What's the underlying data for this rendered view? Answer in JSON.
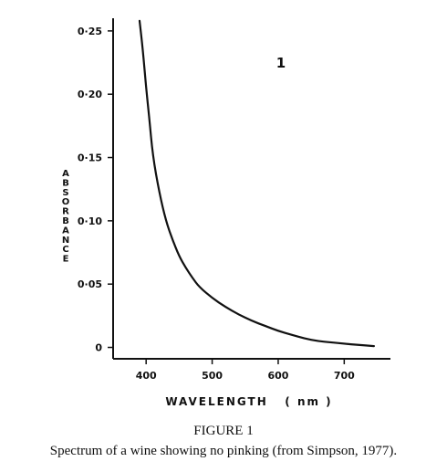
{
  "chart_data": {
    "type": "line",
    "title": "",
    "xlabel": "WAVELENGTH   ( nm )",
    "ylabel": "ABSORBANCE",
    "xlim": [
      350,
      770
    ],
    "ylim": [
      -0.009,
      0.26
    ],
    "x_ticks": [
      400,
      500,
      600,
      700
    ],
    "x_tick_labels": [
      "400",
      "500",
      "600",
      "700"
    ],
    "y_ticks": [
      0,
      0.05,
      0.1,
      0.15,
      0.2,
      0.25
    ],
    "y_tick_labels": [
      "0",
      "0·05",
      "0·10",
      "0·15",
      "0·20",
      "0·25"
    ],
    "grid": false,
    "series": [
      {
        "name": "1",
        "x": [
          390,
          395,
          400,
          405,
          410,
          420,
          430,
          440,
          450,
          460,
          470,
          480,
          500,
          520,
          540,
          560,
          580,
          600,
          620,
          640,
          660,
          680,
          700,
          720,
          745
        ],
        "y": [
          0.258,
          0.235,
          0.205,
          0.18,
          0.152,
          0.122,
          0.1,
          0.085,
          0.072,
          0.063,
          0.055,
          0.048,
          0.039,
          0.032,
          0.026,
          0.021,
          0.017,
          0.013,
          0.01,
          0.007,
          0.005,
          0.004,
          0.003,
          0.002,
          0.001
        ]
      }
    ]
  },
  "figure": {
    "title": "FIGURE 1",
    "caption": "Spectrum of a wine showing no pinking (from Simpson, 1977)."
  }
}
